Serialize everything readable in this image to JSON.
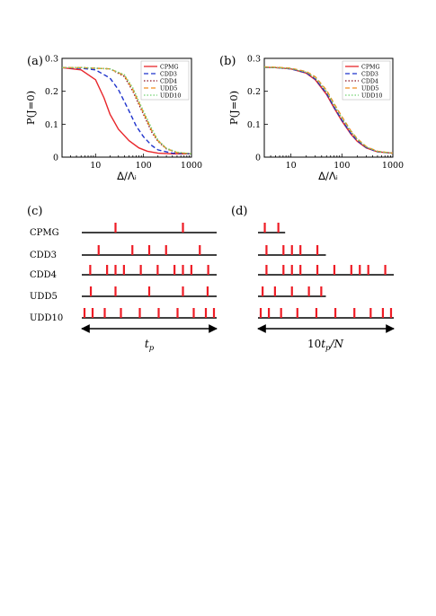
{
  "panel_labels": [
    "(a)",
    "(b)",
    "(c)",
    "(d)"
  ],
  "colors": {
    "CPMG": "#e8262b",
    "CDD3": "#1f33cc",
    "CDD4": "#8b1020",
    "UDD5": "#f08a1e",
    "UDD10": "#6fd16f",
    "pulse": "#ee1c25",
    "axis": "#000000"
  },
  "legend_styles": [
    "solid",
    "dashed",
    "dotted",
    "dashed",
    "dotted"
  ],
  "chart_data": [
    {
      "type": "line",
      "panel": "(a)",
      "xlabel": "Δ/Λᵢ",
      "ylabel": "P(J=0)",
      "xscale": "log",
      "xlim": [
        2,
        1000
      ],
      "ylim": [
        0,
        0.3
      ],
      "xticks": [
        "10",
        "100",
        "1000"
      ],
      "yticks": [
        "0",
        "0.1",
        "0.2",
        "0.3"
      ],
      "legend_placement": "top-right",
      "series": [
        {
          "name": "CPMG",
          "x": [
            2,
            5,
            10,
            15,
            20,
            30,
            50,
            80,
            120,
            200,
            400,
            1000
          ],
          "y": [
            0.272,
            0.265,
            0.235,
            0.18,
            0.13,
            0.085,
            0.05,
            0.028,
            0.018,
            0.012,
            0.01,
            0.01
          ]
        },
        {
          "name": "CDD3",
          "x": [
            2,
            5,
            10,
            20,
            30,
            50,
            70,
            100,
            150,
            200,
            400,
            1000
          ],
          "y": [
            0.272,
            0.27,
            0.265,
            0.24,
            0.205,
            0.14,
            0.095,
            0.062,
            0.035,
            0.022,
            0.012,
            0.01
          ]
        },
        {
          "name": "CDD4",
          "x": [
            2,
            5,
            10,
            20,
            40,
            60,
            80,
            100,
            150,
            200,
            300,
            500,
            1000
          ],
          "y": [
            0.272,
            0.272,
            0.27,
            0.268,
            0.245,
            0.2,
            0.16,
            0.13,
            0.075,
            0.048,
            0.025,
            0.014,
            0.01
          ]
        },
        {
          "name": "UDD5",
          "x": [
            2,
            5,
            10,
            20,
            40,
            60,
            80,
            100,
            150,
            200,
            300,
            500,
            1000
          ],
          "y": [
            0.272,
            0.272,
            0.27,
            0.268,
            0.248,
            0.205,
            0.165,
            0.135,
            0.08,
            0.05,
            0.026,
            0.014,
            0.01
          ]
        },
        {
          "name": "UDD10",
          "x": [
            2,
            5,
            10,
            20,
            40,
            60,
            80,
            100,
            150,
            200,
            300,
            500,
            1000
          ],
          "y": [
            0.272,
            0.272,
            0.27,
            0.268,
            0.25,
            0.21,
            0.17,
            0.14,
            0.085,
            0.052,
            0.027,
            0.015,
            0.01
          ]
        }
      ]
    },
    {
      "type": "line",
      "panel": "(b)",
      "xlabel": "Δ/Λᵢ",
      "ylabel": "P(J=0)",
      "xscale": "log",
      "xlim": [
        3,
        1000
      ],
      "ylim": [
        0,
        0.3
      ],
      "xticks": [
        "10",
        "100",
        "1000"
      ],
      "yticks": [
        "0",
        "0.1",
        "0.2",
        "0.3"
      ],
      "legend_placement": "top-right",
      "series": [
        {
          "name": "CPMG",
          "x": [
            3,
            5,
            10,
            20,
            30,
            50,
            70,
            100,
            150,
            200,
            300,
            500,
            1000
          ],
          "y": [
            0.273,
            0.272,
            0.268,
            0.255,
            0.235,
            0.19,
            0.15,
            0.11,
            0.07,
            0.048,
            0.028,
            0.016,
            0.012
          ]
        },
        {
          "name": "CDD3",
          "x": [
            3,
            5,
            10,
            20,
            30,
            50,
            70,
            100,
            150,
            200,
            300,
            500,
            1000
          ],
          "y": [
            0.273,
            0.272,
            0.268,
            0.256,
            0.237,
            0.193,
            0.152,
            0.112,
            0.072,
            0.05,
            0.029,
            0.016,
            0.012
          ]
        },
        {
          "name": "CDD4",
          "x": [
            3,
            5,
            10,
            20,
            30,
            50,
            70,
            100,
            150,
            200,
            300,
            500,
            1000
          ],
          "y": [
            0.273,
            0.272,
            0.269,
            0.257,
            0.24,
            0.197,
            0.157,
            0.117,
            0.076,
            0.053,
            0.03,
            0.017,
            0.012
          ]
        },
        {
          "name": "UDD5",
          "x": [
            3,
            5,
            10,
            20,
            30,
            50,
            70,
            100,
            150,
            200,
            300,
            500,
            1000
          ],
          "y": [
            0.274,
            0.273,
            0.27,
            0.26,
            0.244,
            0.203,
            0.163,
            0.123,
            0.08,
            0.056,
            0.032,
            0.018,
            0.012
          ]
        },
        {
          "name": "UDD10",
          "x": [
            3,
            5,
            10,
            20,
            30,
            50,
            70,
            100,
            150,
            200,
            300,
            500,
            1000
          ],
          "y": [
            0.273,
            0.272,
            0.269,
            0.258,
            0.241,
            0.199,
            0.159,
            0.119,
            0.078,
            0.054,
            0.031,
            0.017,
            0.012
          ]
        }
      ]
    }
  ],
  "pulses_c": {
    "axis_label": "t_p",
    "rows": [
      {
        "name": "CPMG",
        "pulses": [
          0.25,
          0.75
        ]
      },
      {
        "name": "CDD3",
        "pulses": [
          0.125,
          0.375,
          0.5,
          0.625,
          0.875
        ]
      },
      {
        "name": "CDD4",
        "pulses": [
          0.0625,
          0.1875,
          0.25,
          0.3125,
          0.4375,
          0.5625,
          0.6875,
          0.75,
          0.8125,
          0.9375
        ]
      },
      {
        "name": "UDD5",
        "pulses": [
          0.067,
          0.25,
          0.5,
          0.75,
          0.933
        ]
      },
      {
        "name": "UDD10",
        "pulses": [
          0.02,
          0.08,
          0.17,
          0.29,
          0.43,
          0.57,
          0.71,
          0.83,
          0.92,
          0.98
        ]
      }
    ]
  },
  "pulses_d": {
    "axis_label": "10t_p/N",
    "rows": [
      {
        "name": "CPMG",
        "length": 0.2,
        "pulses": [
          0.05,
          0.15
        ]
      },
      {
        "name": "CDD3",
        "length": 0.5,
        "pulses": [
          0.0625,
          0.1875,
          0.25,
          0.3125,
          0.4375
        ]
      },
      {
        "name": "CDD4",
        "length": 1.0,
        "pulses": [
          0.0625,
          0.1875,
          0.25,
          0.3125,
          0.4375,
          0.5625,
          0.6875,
          0.75,
          0.8125,
          0.9375
        ]
      },
      {
        "name": "UDD5",
        "length": 0.5,
        "pulses": [
          0.034,
          0.125,
          0.25,
          0.375,
          0.466
        ]
      },
      {
        "name": "UDD10",
        "length": 1.0,
        "pulses": [
          0.02,
          0.08,
          0.17,
          0.29,
          0.43,
          0.57,
          0.71,
          0.83,
          0.92,
          0.98
        ]
      }
    ]
  }
}
